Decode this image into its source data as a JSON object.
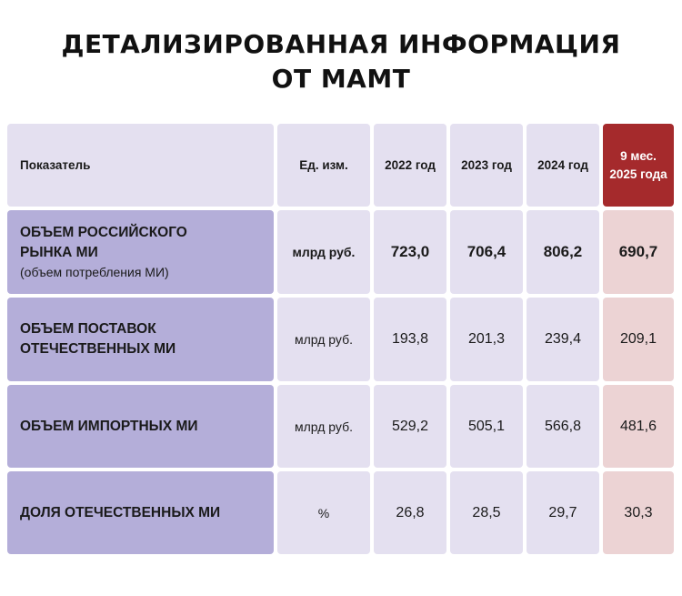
{
  "title": {
    "line1": "ДЕТАЛИЗИРОВАННАЯ ИНФОРМАЦИЯ",
    "line2": "ОТ МАМТ"
  },
  "header": {
    "indicator": "Показатель",
    "unit": "Ед. изм.",
    "y2022": "2022 год",
    "y2023": "2023 год",
    "y2024": "2024 год",
    "y2025_line1": "9 мес.",
    "y2025_line2": "2025 года"
  },
  "rows": [
    {
      "label_line1": "ОБЪЕМ РОССИЙСКОГО",
      "label_line2": "РЫНКА МИ",
      "label_sub": "(объем потребления МИ)",
      "unit": "млрд руб.",
      "v2022": "723,0",
      "v2023": "706,4",
      "v2024": "806,2",
      "v2025": "690,7"
    },
    {
      "label_line1": "ОБЪЕМ ПОСТАВОК",
      "label_line2": "ОТЕЧЕСТВЕННЫХ МИ",
      "unit": "млрд руб.",
      "v2022": "193,8",
      "v2023": "201,3",
      "v2024": "239,4",
      "v2025": "209,1"
    },
    {
      "label_line1": "ОБЪЕМ ИМПОРТНЫХ МИ",
      "unit": "млрд руб.",
      "v2022": "529,2",
      "v2023": "505,1",
      "v2024": "566,8",
      "v2025": "481,6"
    },
    {
      "label_line1": "ДОЛЯ ОТЕЧЕСТВЕННЫХ МИ",
      "unit": "%",
      "v2022": "26,8",
      "v2023": "28,5",
      "v2024": "29,7",
      "v2025": "30,3"
    }
  ],
  "colors": {
    "header_bg": "#e4e0f0",
    "label_bg": "#b4aed9",
    "highlight_header": "#a52a2c",
    "highlight_cell": "#ecd3d4"
  }
}
